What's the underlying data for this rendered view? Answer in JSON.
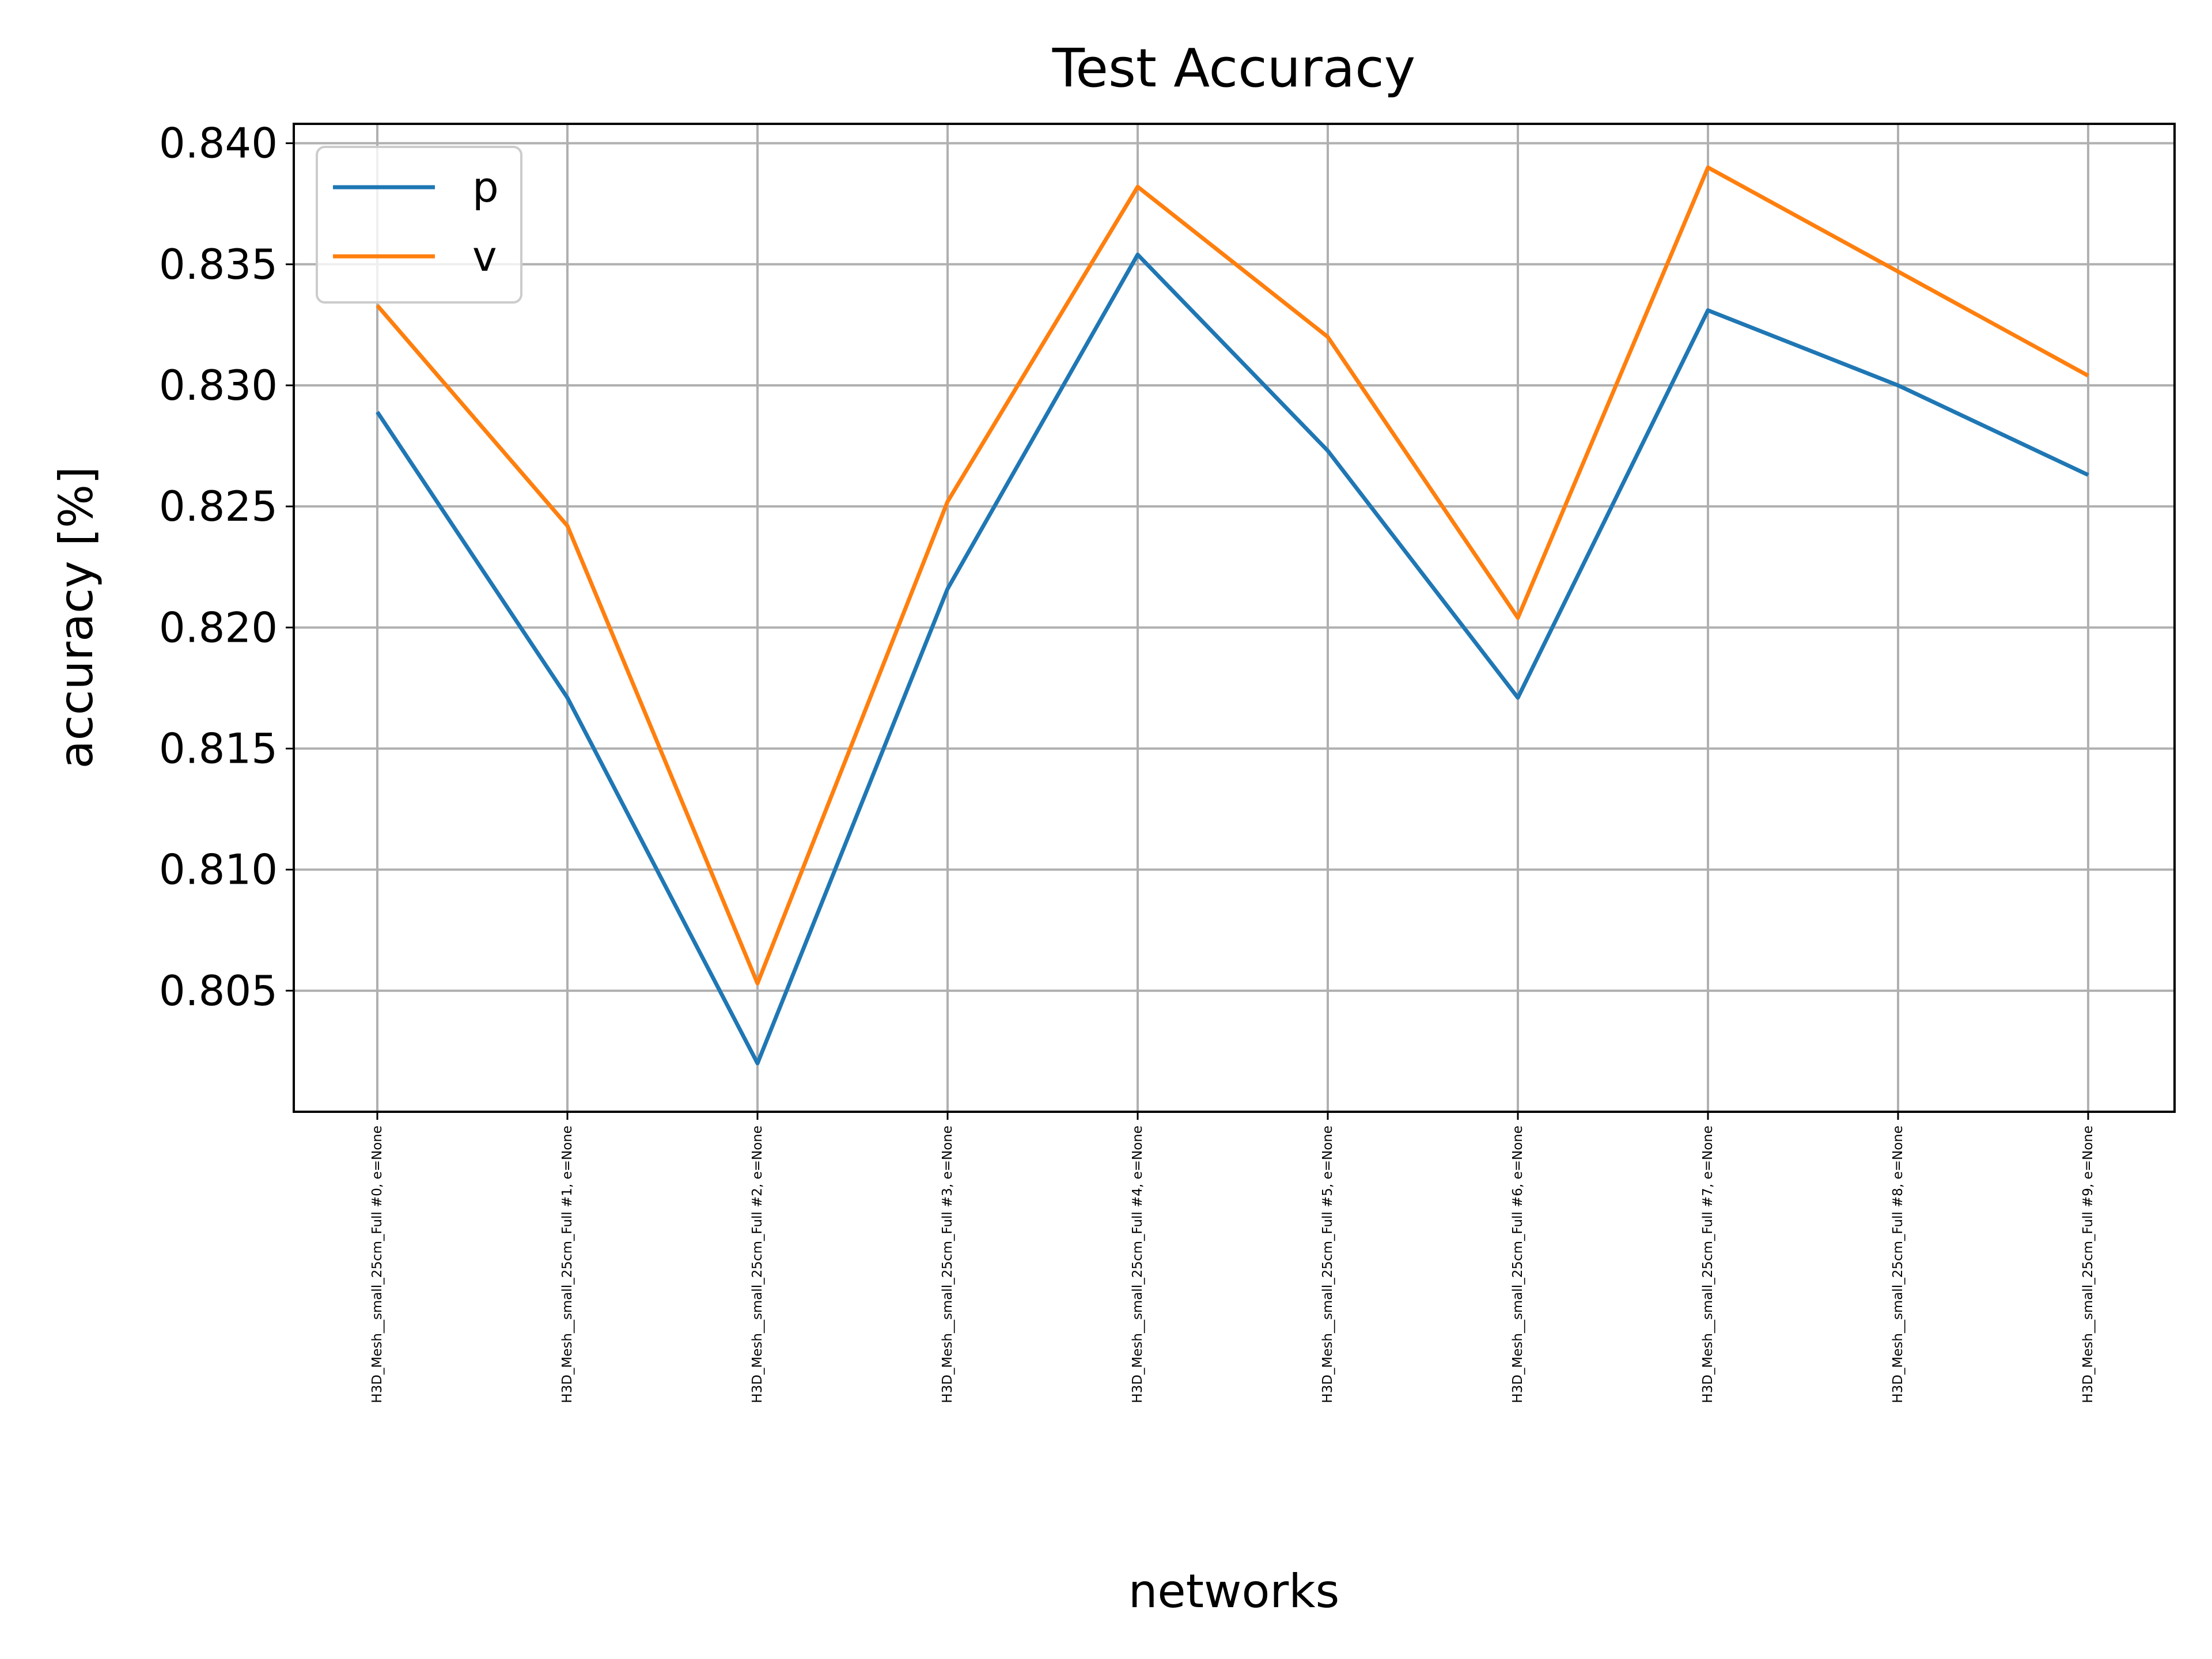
{
  "chart_data": {
    "type": "line",
    "title": "Test Accuracy",
    "xlabel": "networks",
    "ylabel": "accuracy [%]",
    "categories": [
      "H3D_Mesh__small_25cm_Full #0, e=None",
      "H3D_Mesh__small_25cm_Full #1, e=None",
      "H3D_Mesh__small_25cm_Full #2, e=None",
      "H3D_Mesh__small_25cm_Full #3, e=None",
      "H3D_Mesh__small_25cm_Full #4, e=None",
      "H3D_Mesh__small_25cm_Full #5, e=None",
      "H3D_Mesh__small_25cm_Full #6, e=None",
      "H3D_Mesh__small_25cm_Full #7, e=None",
      "H3D_Mesh__small_25cm_Full #8, e=None",
      "H3D_Mesh__small_25cm_Full #9, e=None"
    ],
    "series": [
      {
        "name": "p",
        "color": "#1f77b4",
        "values": [
          0.8289,
          0.8171,
          0.802,
          0.8216,
          0.8354,
          0.8273,
          0.8171,
          0.8331,
          0.83,
          0.8263
        ]
      },
      {
        "name": "v",
        "color": "#ff7f0e",
        "values": [
          0.8333,
          0.8242,
          0.8053,
          0.8252,
          0.8382,
          0.832,
          0.8204,
          0.839,
          0.8347,
          0.8304
        ]
      }
    ],
    "ylim": [
      0.8,
      0.8408
    ],
    "yticks": [
      "0.805",
      "0.810",
      "0.815",
      "0.820",
      "0.825",
      "0.830",
      "0.835",
      "0.840"
    ],
    "grid": true,
    "legend_position": "top-left"
  }
}
